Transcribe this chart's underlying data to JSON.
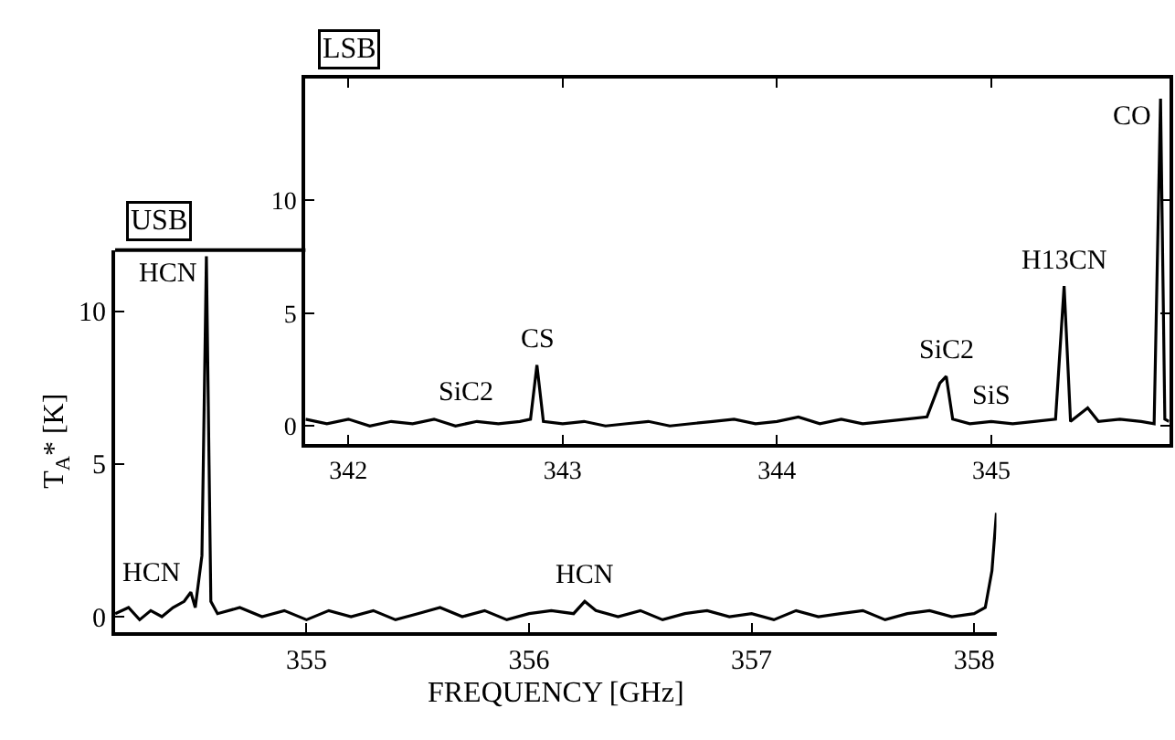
{
  "chart_data": [
    {
      "type": "line",
      "title": "USB",
      "xlabel": "FREQUENCY [GHz]",
      "ylabel": "T$_{A}$* [K]",
      "xlim": [
        354.14,
        358.1
      ],
      "xticks": [
        355,
        356,
        357,
        358
      ],
      "ylim": [
        -0.5,
        12
      ],
      "yticks": [
        0,
        5,
        10
      ],
      "marker": "none",
      "line_style": "solid",
      "series": [
        {
          "color": "#000000",
          "x": [
            354.14,
            354.2,
            354.25,
            354.3,
            354.35,
            354.4,
            354.45,
            354.48,
            354.5,
            354.53,
            354.55,
            354.57,
            354.6,
            354.7,
            354.8,
            354.9,
            355.0,
            355.1,
            355.2,
            355.3,
            355.4,
            355.5,
            355.6,
            355.7,
            355.8,
            355.9,
            356.0,
            356.1,
            356.2,
            356.25,
            356.3,
            356.4,
            356.5,
            356.6,
            356.7,
            356.8,
            356.9,
            357.0,
            357.1,
            357.2,
            357.3,
            357.4,
            357.5,
            357.6,
            357.7,
            357.8,
            357.9,
            358.0,
            358.05,
            358.08,
            358.1
          ],
          "values": [
            0.1,
            0.3,
            -0.1,
            0.2,
            0.0,
            0.3,
            0.5,
            0.8,
            0.3,
            2.0,
            11.8,
            0.5,
            0.1,
            0.3,
            0.0,
            0.2,
            -0.1,
            0.2,
            0.0,
            0.2,
            -0.1,
            0.1,
            0.3,
            0.0,
            0.2,
            -0.1,
            0.1,
            0.2,
            0.1,
            0.5,
            0.2,
            0.0,
            0.2,
            -0.1,
            0.1,
            0.2,
            0.0,
            0.1,
            -0.1,
            0.2,
            0.0,
            0.1,
            0.2,
            -0.1,
            0.1,
            0.2,
            0.0,
            0.1,
            0.3,
            1.5,
            3.4
          ]
        }
      ],
      "annotations": [
        {
          "text": "HCN",
          "x": 354.55,
          "y": 11.8
        },
        {
          "text": "HCN",
          "x": 354.48,
          "y": 0.8
        },
        {
          "text": "HCN",
          "x": 356.25,
          "y": 0.5
        }
      ]
    },
    {
      "type": "line",
      "title": "LSB",
      "xlim": [
        341.8,
        345.83
      ],
      "xticks": [
        342,
        343,
        344,
        345
      ],
      "ylim": [
        -0.8,
        15.4
      ],
      "yticks": [
        0,
        5,
        10
      ],
      "marker": "none",
      "line_style": "solid",
      "series": [
        {
          "color": "#000000",
          "x": [
            341.8,
            341.9,
            342.0,
            342.1,
            342.2,
            342.3,
            342.4,
            342.5,
            342.6,
            342.7,
            342.8,
            342.85,
            342.88,
            342.91,
            343.0,
            343.1,
            343.2,
            343.3,
            343.4,
            343.5,
            343.6,
            343.7,
            343.8,
            343.9,
            344.0,
            344.1,
            344.2,
            344.3,
            344.4,
            344.5,
            344.6,
            344.7,
            344.76,
            344.79,
            344.82,
            344.9,
            345.0,
            345.1,
            345.2,
            345.3,
            345.34,
            345.37,
            345.45,
            345.5,
            345.6,
            345.7,
            345.76,
            345.79,
            345.81,
            345.83
          ],
          "values": [
            0.3,
            0.1,
            0.3,
            0.0,
            0.2,
            0.1,
            0.3,
            0.0,
            0.2,
            0.1,
            0.2,
            0.3,
            2.7,
            0.2,
            0.1,
            0.2,
            0.0,
            0.1,
            0.2,
            0.0,
            0.1,
            0.2,
            0.3,
            0.1,
            0.2,
            0.4,
            0.1,
            0.3,
            0.1,
            0.2,
            0.3,
            0.4,
            1.9,
            2.2,
            0.3,
            0.1,
            0.2,
            0.1,
            0.2,
            0.3,
            6.2,
            0.2,
            0.8,
            0.2,
            0.3,
            0.2,
            0.1,
            14.5,
            0.3,
            0.2
          ]
        }
      ],
      "annotations": [
        {
          "text": "SiC2",
          "x": 342.55,
          "y": 0.3
        },
        {
          "text": "CS",
          "x": 342.88,
          "y": 2.7
        },
        {
          "text": "SiC2",
          "x": 344.79,
          "y": 2.2
        },
        {
          "text": "SiS",
          "x": 345.0,
          "y": 0.2
        },
        {
          "text": "H13CN",
          "x": 345.34,
          "y": 6.2
        },
        {
          "text": "CO",
          "x": 345.79,
          "y": 14.5
        }
      ]
    }
  ]
}
